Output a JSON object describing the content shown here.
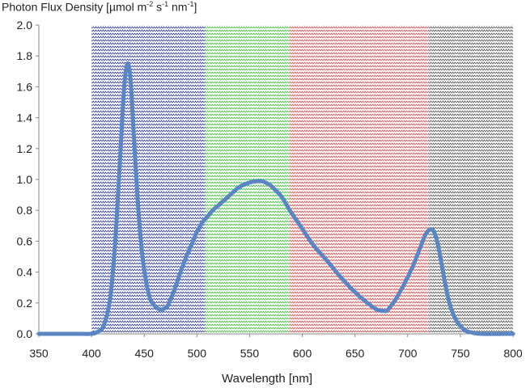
{
  "chart_data": {
    "type": "line",
    "title": "",
    "ylabel_parts": [
      "Photon Flux Density [µmol m",
      "-2",
      " s",
      "-1",
      " nm",
      "-1",
      "]"
    ],
    "xlabel": "Wavelength [nm]",
    "xlim": [
      350,
      800
    ],
    "ylim": [
      0.0,
      2.0
    ],
    "xticks": [
      350,
      400,
      450,
      500,
      550,
      600,
      650,
      700,
      750,
      800
    ],
    "yticks": [
      "0.0",
      "0.2",
      "0.4",
      "0.6",
      "0.8",
      "1.0",
      "1.2",
      "1.4",
      "1.6",
      "1.8",
      "2.0"
    ],
    "grid": false,
    "bands": [
      {
        "name": "blue",
        "x0": 400,
        "x1": 508,
        "color": "#2e3a9e"
      },
      {
        "name": "green",
        "x0": 508,
        "x1": 588,
        "color": "#3fbf3f"
      },
      {
        "name": "red",
        "x0": 588,
        "x1": 720,
        "color": "#d94a4a"
      },
      {
        "name": "far-red",
        "x0": 720,
        "x1": 800,
        "color": "#555555"
      }
    ],
    "series": [
      {
        "color": "#5a86c5",
        "x": [
          350,
          390,
          398,
          405,
          412,
          418,
          423,
          428,
          431,
          434,
          437,
          440,
          444,
          448,
          452,
          456,
          460,
          464,
          468,
          472,
          476,
          480,
          485,
          490,
          495,
          500,
          505,
          510,
          515,
          520,
          530,
          540,
          550,
          560,
          565,
          570,
          580,
          590,
          600,
          610,
          620,
          630,
          640,
          650,
          660,
          670,
          676,
          680,
          684,
          690,
          698,
          705,
          712,
          716,
          720,
          724,
          728,
          732,
          736,
          740,
          745,
          750,
          755,
          760,
          770,
          800
        ],
        "y": [
          0.0,
          0.0,
          0.0,
          0.01,
          0.06,
          0.25,
          0.65,
          1.25,
          1.6,
          1.75,
          1.65,
          1.3,
          0.85,
          0.52,
          0.33,
          0.22,
          0.18,
          0.16,
          0.16,
          0.18,
          0.24,
          0.31,
          0.41,
          0.5,
          0.58,
          0.66,
          0.72,
          0.76,
          0.8,
          0.83,
          0.89,
          0.95,
          0.98,
          0.99,
          0.98,
          0.96,
          0.89,
          0.78,
          0.68,
          0.58,
          0.5,
          0.42,
          0.34,
          0.27,
          0.21,
          0.16,
          0.15,
          0.15,
          0.18,
          0.24,
          0.34,
          0.44,
          0.56,
          0.63,
          0.67,
          0.67,
          0.6,
          0.46,
          0.31,
          0.19,
          0.1,
          0.05,
          0.02,
          0.01,
          0.0,
          0.0
        ]
      }
    ]
  }
}
